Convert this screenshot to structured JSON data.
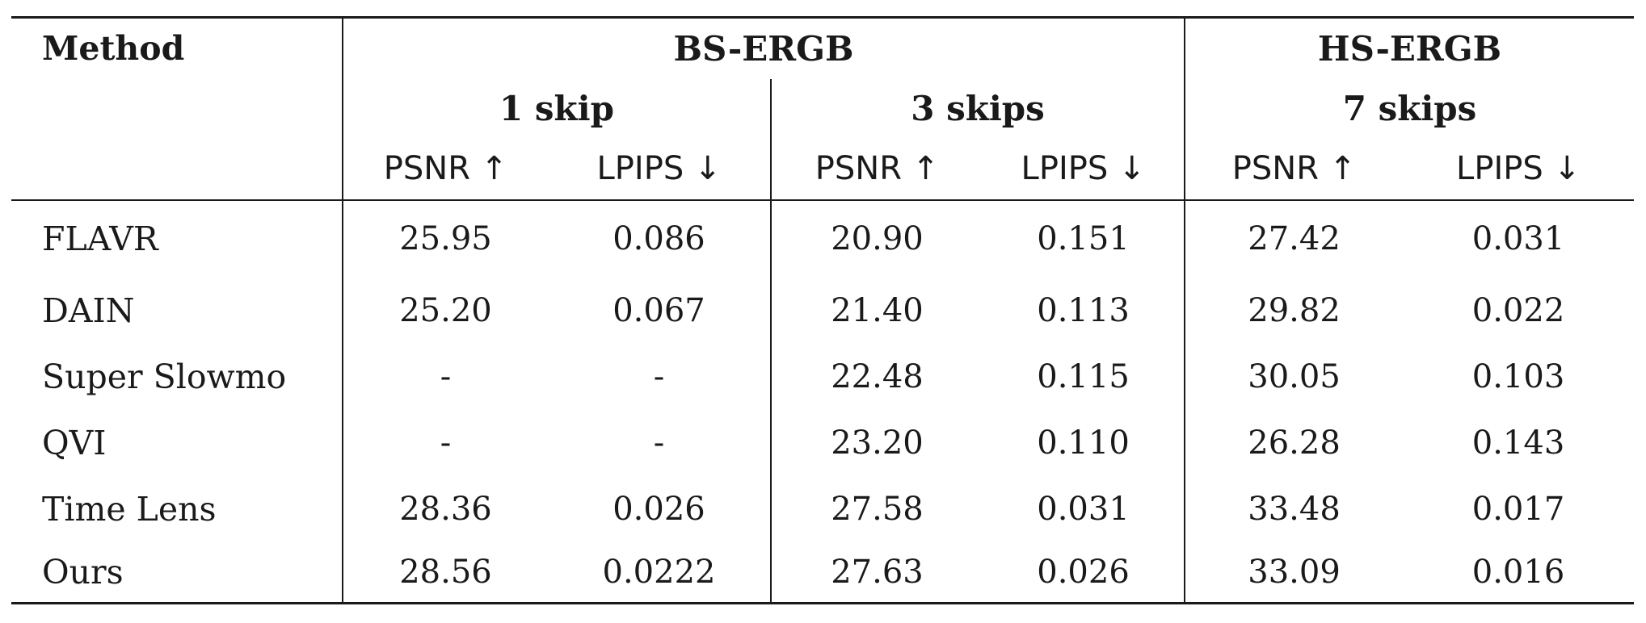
{
  "table": {
    "method_header": "Method",
    "groups": [
      {
        "name": "BS-ERGB",
        "subgroups": [
          "1 skip",
          "3 skips"
        ]
      },
      {
        "name": "HS-ERGB",
        "subgroups": [
          "7 skips"
        ]
      }
    ],
    "metrics": [
      "PSNR ↑",
      "LPIPS ↓",
      "PSNR ↑",
      "LPIPS ↓",
      "PSNR ↑",
      "LPIPS ↓"
    ],
    "rows": [
      {
        "method": "FLAVR",
        "values": [
          "25.95",
          "0.086",
          "20.90",
          "0.151",
          "27.42",
          "0.031"
        ]
      },
      {
        "method": "DAIN",
        "values": [
          "25.20",
          "0.067",
          "21.40",
          "0.113",
          "29.82",
          "0.022"
        ]
      },
      {
        "method": "Super Slowmo",
        "values": [
          "-",
          "-",
          "22.48",
          "0.115",
          "30.05",
          "0.103"
        ]
      },
      {
        "method": "QVI",
        "values": [
          "-",
          "-",
          "23.20",
          "0.110",
          "26.28",
          "0.143"
        ]
      },
      {
        "method": "Time Lens",
        "values": [
          "28.36",
          "0.026",
          "27.58",
          "0.031",
          "33.48",
          "0.017"
        ]
      },
      {
        "method": "Ours",
        "values": [
          "28.56",
          "0.0222",
          "27.63",
          "0.026",
          "33.09",
          "0.016"
        ]
      }
    ],
    "bold_cells": [
      {
        "row": 4,
        "col": 4
      },
      {
        "row": 5,
        "col": 0
      },
      {
        "row": 5,
        "col": 1
      },
      {
        "row": 5,
        "col": 2
      },
      {
        "row": 5,
        "col": 3
      },
      {
        "row": 5,
        "col": 5
      }
    ],
    "bold_methods": [
      "Ours"
    ]
  }
}
